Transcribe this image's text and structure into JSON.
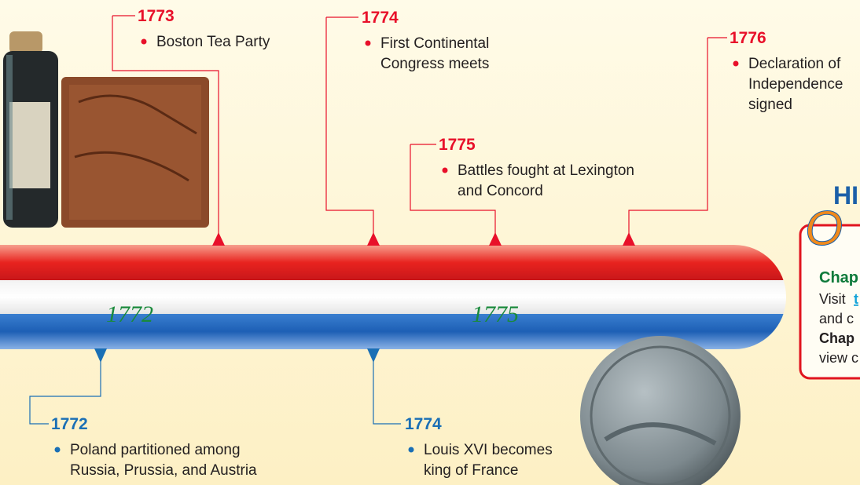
{
  "top_events": [
    {
      "year": "1773",
      "lines": [
        "Boston Tea Party"
      ]
    },
    {
      "year": "1774",
      "lines": [
        "First Continental",
        "Congress meets"
      ]
    },
    {
      "year": "1775",
      "lines": [
        "Battles fought at Lexington",
        "and Concord"
      ]
    },
    {
      "year": "1776",
      "lines": [
        "Declaration of",
        "Independence",
        "signed"
      ]
    }
  ],
  "bottom_events": [
    {
      "year": "1772",
      "lines": [
        "Poland partitioned among",
        "Russia, Prussia, and Austria"
      ]
    },
    {
      "year": "1774",
      "lines": [
        "Louis XVI becomes",
        "king of France"
      ]
    }
  ],
  "axis_labels": [
    "1772",
    "1775"
  ],
  "sidebar": {
    "heading": "HI",
    "logo": "O",
    "title": "Chap",
    "visit": "Visit",
    "link": "t",
    "lines": [
      "and c",
      "Chap",
      "view c"
    ]
  }
}
